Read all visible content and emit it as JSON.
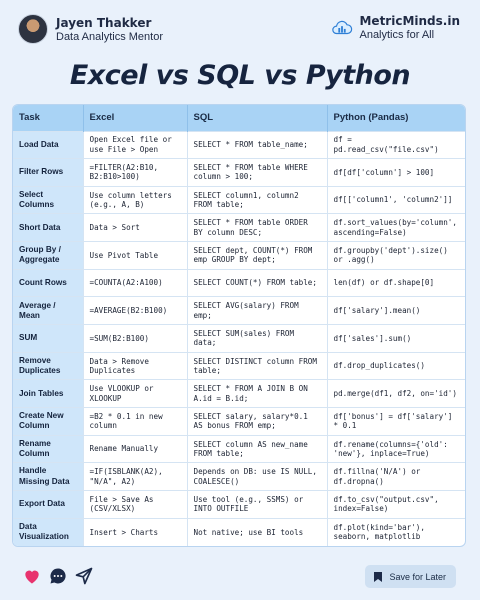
{
  "author": {
    "name": "Jayen Thakker",
    "role": "Data Analytics Mentor"
  },
  "brand": {
    "name": "MetricMinds.in",
    "tagline": "Analytics for All"
  },
  "title": "Excel vs SQL vs Python",
  "table": {
    "headers": [
      "Task",
      "Excel",
      "SQL",
      "Python (Pandas)"
    ],
    "rows": [
      {
        "task": "Load Data",
        "excel": "Open Excel file or use File > Open",
        "sql": "SELECT * FROM table_name;",
        "python": "df = pd.read_csv(\"file.csv\")"
      },
      {
        "task": "Filter Rows",
        "excel": "=FILTER(A2:B10, B2:B10>100)",
        "sql": "SELECT * FROM table WHERE column > 100;",
        "python": "df[df['column'] > 100]"
      },
      {
        "task": "Select Columns",
        "excel": "Use column letters (e.g., A, B)",
        "sql": "SELECT column1, column2 FROM table;",
        "python": "df[['column1', 'column2']]"
      },
      {
        "task": "Short Data",
        "excel": "Data > Sort",
        "sql": "SELECT * FROM table ORDER BY column DESC;",
        "python": "df.sort_values(by='column', ascending=False)"
      },
      {
        "task": "Group By / Aggregate",
        "excel": "Use Pivot Table",
        "sql": "SELECT dept, COUNT(*) FROM emp GROUP BY dept;",
        "python": "df.groupby('dept').size() or .agg()"
      },
      {
        "task": "Count Rows",
        "excel": "=COUNTA(A2:A100)",
        "sql": "SELECT COUNT(*) FROM table;",
        "python": "len(df) or df.shape[0]"
      },
      {
        "task": "Average / Mean",
        "excel": "=AVERAGE(B2:B100)",
        "sql": "SELECT AVG(salary) FROM emp;",
        "python": "df['salary'].mean()"
      },
      {
        "task": "SUM",
        "excel": "=SUM(B2:B100)",
        "sql": "SELECT SUM(sales) FROM data;",
        "python": "df['sales'].sum()"
      },
      {
        "task": "Remove Duplicates",
        "excel": "Data > Remove Duplicates",
        "sql": "SELECT DISTINCT column FROM table;",
        "python": "df.drop_duplicates()"
      },
      {
        "task": "Join Tables",
        "excel": "Use VLOOKUP or XLOOKUP",
        "sql": "SELECT * FROM A JOIN B ON A.id = B.id;",
        "python": "pd.merge(df1, df2, on='id')"
      },
      {
        "task": "Create New Column",
        "excel": "=B2 * 0.1 in new column",
        "sql": "SELECT salary, salary*0.1 AS bonus FROM emp;",
        "python": "df['bonus'] = df['salary'] * 0.1"
      },
      {
        "task": "Rename Column",
        "excel": "Rename Manually",
        "sql": "SELECT column AS new_name FROM table;",
        "python": "df.rename(columns={'old': 'new'}, inplace=True)"
      },
      {
        "task": "Handle Missing Data",
        "excel": "=IF(ISBLANK(A2), \"N/A\", A2)",
        "sql": "Depends on DB: use IS NULL, COALESCE()",
        "python": "df.fillna('N/A') or df.dropna()"
      },
      {
        "task": "Export Data",
        "excel": "File > Save As (CSV/XLSX)",
        "sql": "Use tool (e.g., SSMS) or INTO OUTFILE",
        "python": "df.to_csv(\"output.csv\", index=False)"
      },
      {
        "task": "Data Visualization",
        "excel": "Insert > Charts",
        "sql": "Not native; use BI tools",
        "python": "df.plot(kind='bar'), seaborn, matplotlib"
      }
    ]
  },
  "footer": {
    "save_label": "Save for Later"
  },
  "icons": {
    "like": "heart-icon",
    "comment": "comment-icon",
    "share": "send-icon",
    "save": "bookmark-icon"
  },
  "colors": {
    "background": "#e9f1fb",
    "header": "#a9d3f5",
    "task_cell": "#cfe6fa",
    "accent": "#1a6fd8",
    "like": "#e8336e"
  }
}
